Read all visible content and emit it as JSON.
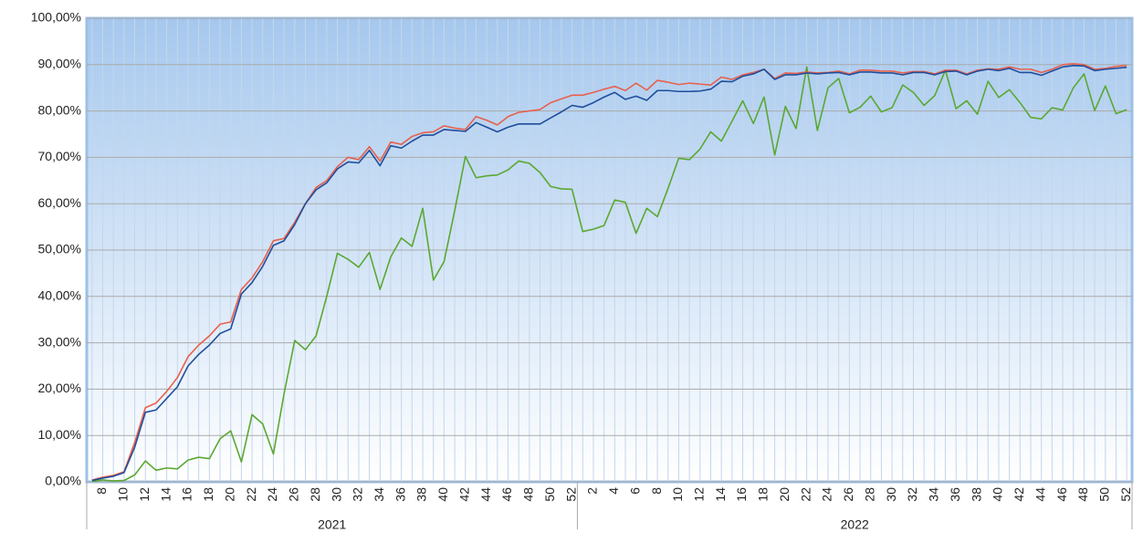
{
  "chart_data": {
    "type": "line",
    "category_groups": [
      {
        "label": "2021",
        "categories": [
          null,
          8,
          null,
          10,
          null,
          12,
          null,
          14,
          null,
          16,
          null,
          18,
          null,
          20,
          null,
          22,
          null,
          24,
          null,
          26,
          null,
          28,
          null,
          30,
          null,
          32,
          null,
          34,
          null,
          36,
          null,
          38,
          null,
          40,
          null,
          42,
          null,
          44,
          null,
          46,
          null,
          48,
          null,
          50,
          null,
          52
        ]
      },
      {
        "label": "2022",
        "categories": [
          null,
          2,
          null,
          4,
          null,
          6,
          null,
          8,
          null,
          10,
          null,
          12,
          null,
          14,
          null,
          16,
          null,
          18,
          null,
          20,
          null,
          22,
          null,
          24,
          null,
          26,
          null,
          28,
          null,
          30,
          null,
          32,
          null,
          34,
          null,
          36,
          null,
          38,
          null,
          40,
          null,
          42,
          null,
          44,
          null,
          46,
          null,
          48,
          null,
          50,
          null,
          52
        ]
      }
    ],
    "series": [
      {
        "color": "#5aa832",
        "values": [
          0.1,
          0.4,
          0.2,
          0.3,
          1.5,
          4.5,
          2.5,
          3,
          2.8,
          4.7,
          5.3,
          5,
          9.3,
          11,
          4.3,
          14.5,
          12.5,
          6,
          19,
          30.5,
          28.5,
          31.5,
          40,
          49.3,
          48,
          46.3,
          49.5,
          41.5,
          48.5,
          52.6,
          50.8,
          59,
          43.5,
          47.5,
          58.5,
          70.2,
          65.6,
          66,
          66.2,
          67.3,
          69.2,
          68.7,
          66.7,
          63.7,
          63.2,
          63.1,
          54,
          54.5,
          55.3,
          60.8,
          60.3,
          53.6,
          59,
          57.2,
          63.3,
          69.8,
          69.5,
          71.8,
          75.5,
          73.5,
          77.8,
          82.2,
          77.3,
          83,
          70.5,
          81,
          76.2,
          89.5,
          75.8,
          85,
          87,
          79.6,
          80.8,
          83.2,
          79.8,
          80.7,
          85.6,
          84,
          81.2,
          83.3,
          88.8,
          80.5,
          82.2,
          79.3,
          86.4,
          82.9,
          84.6,
          81.8,
          78.6,
          78.3,
          80.7,
          80.2,
          85,
          88,
          80.1,
          85.4,
          79.4,
          80.3
        ]
      },
      {
        "color": "#e8604c",
        "values": [
          0.4,
          1,
          1.4,
          2.2,
          8.5,
          16,
          17,
          19.5,
          22.5,
          27,
          29.5,
          31.5,
          34,
          34.5,
          41.5,
          44,
          47.5,
          52,
          52.5,
          56,
          60,
          63.5,
          65,
          68,
          70,
          69.5,
          72.3,
          69.2,
          73.3,
          72.8,
          74.5,
          75.3,
          75.5,
          76.8,
          76.3,
          76,
          78.8,
          78,
          77,
          78.8,
          79.7,
          80,
          80.3,
          81.8,
          82.6,
          83.4,
          83.4,
          84,
          84.7,
          85.3,
          84.4,
          86,
          84.5,
          86.6,
          86.2,
          85.7,
          86,
          85.8,
          85.6,
          87.3,
          86.8,
          87.8,
          88.3,
          89,
          87,
          88.2,
          88.1,
          88.4,
          88.2,
          88.3,
          88.6,
          88,
          88.8,
          88.8,
          88.6,
          88.6,
          88.2,
          88.5,
          88.5,
          88,
          88.8,
          88.8,
          88,
          88.8,
          89.1,
          89,
          89.5,
          89,
          89,
          88.3,
          89,
          90,
          90.2,
          90,
          89,
          89.2,
          89.6,
          89.8
        ]
      },
      {
        "color": "#1f4e9c",
        "values": [
          0.3,
          0.8,
          1.2,
          2,
          7.5,
          15,
          15.5,
          18,
          20.5,
          25,
          27.5,
          29.5,
          32,
          33,
          40.5,
          43,
          46.5,
          51,
          52,
          55.5,
          60,
          63,
          64.5,
          67.5,
          69,
          68.8,
          71.5,
          68.2,
          72.5,
          72,
          73.5,
          74.8,
          74.8,
          76,
          75.8,
          75.6,
          77.5,
          76.5,
          75.5,
          76.5,
          77.2,
          77.2,
          77.2,
          78.5,
          79.8,
          81.2,
          80.8,
          81.8,
          83,
          84,
          82.5,
          83.2,
          82.3,
          84.4,
          84.4,
          84.2,
          84.2,
          84.3,
          84.7,
          86.4,
          86.3,
          87.5,
          88,
          89,
          86.8,
          87.8,
          87.8,
          88.2,
          88,
          88.2,
          88.3,
          87.8,
          88.4,
          88.4,
          88.2,
          88.2,
          87.8,
          88.3,
          88.3,
          87.8,
          88.5,
          88.6,
          87.8,
          88.6,
          89,
          88.7,
          89.2,
          88.3,
          88.3,
          87.7,
          88.6,
          89.5,
          89.8,
          89.7,
          88.7,
          89,
          89.2,
          89.4
        ]
      }
    ],
    "ylim": [
      0,
      100
    ],
    "yticks": [
      {
        "value": 0,
        "label": "0,00%"
      },
      {
        "value": 10,
        "label": "10,00%"
      },
      {
        "value": 20,
        "label": "20,00%"
      },
      {
        "value": 30,
        "label": "30,00%"
      },
      {
        "value": 40,
        "label": "40,00%"
      },
      {
        "value": 50,
        "label": "50,00%"
      },
      {
        "value": 60,
        "label": "60,00%"
      },
      {
        "value": 70,
        "label": "70,00%"
      },
      {
        "value": 80,
        "label": "80,00%"
      },
      {
        "value": 90,
        "label": "90,00%"
      },
      {
        "value": 100,
        "label": "100,00%"
      }
    ],
    "grid": true
  }
}
